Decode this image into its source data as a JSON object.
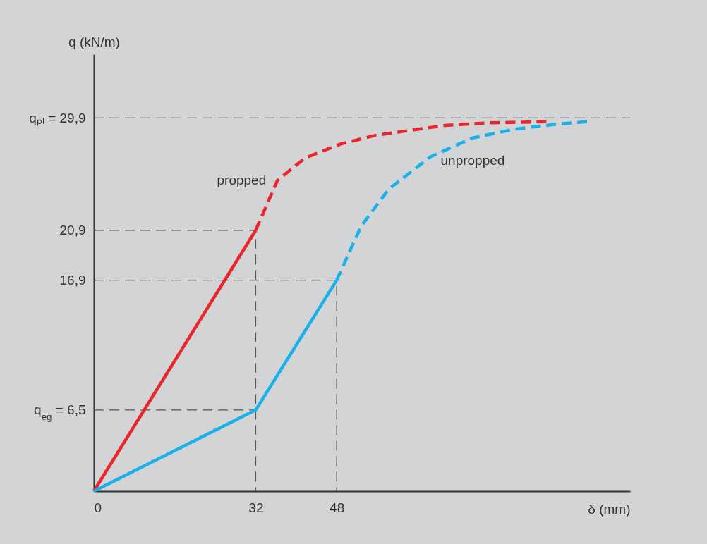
{
  "chart_data": {
    "type": "line",
    "xlabel": "δ (mm)",
    "ylabel": "q (kN/m)",
    "xlim": [
      0,
      106
    ],
    "ylim": [
      0,
      35
    ],
    "xticks": [
      0,
      32,
      48
    ],
    "yticks": [
      {
        "value": 6.5,
        "label": "q$_{eg}$ = 6,5"
      },
      {
        "value": 16.9,
        "label": "16,9"
      },
      {
        "value": 20.9,
        "label": "20,9"
      },
      {
        "value": 29.9,
        "label": "qₚₗ = 29,9"
      }
    ],
    "grid": false,
    "marker": "none",
    "ref_lines": [
      {
        "axis": "y",
        "value": 29.9,
        "color": "#555555",
        "line_style": "dashed"
      }
    ],
    "series": [
      {
        "color": "#e8262b",
        "line_style": "solid",
        "x": [
          0,
          32
        ],
        "values": [
          0,
          20.9
        ]
      },
      {
        "name": "propped",
        "color": "#e8262b",
        "line_style": "dashed",
        "x": [
          32,
          36.3,
          41.8,
          48.7,
          55.6,
          62.5,
          69.4,
          77.7,
          90
        ],
        "values": [
          20.9,
          24.9,
          26.7,
          27.8,
          28.5,
          28.9,
          29.3,
          29.5,
          29.6
        ]
      },
      {
        "color": "#1ab0e8",
        "line_style": "solid",
        "x": [
          0,
          32,
          48
        ],
        "values": [
          0,
          6.5,
          16.9
        ]
      },
      {
        "name": "unpropped",
        "color": "#1ab0e8",
        "line_style": "dashed",
        "x": [
          48,
          52.8,
          58.3,
          66.6,
          74.9,
          83.2,
          91.4,
          97.7
        ],
        "values": [
          16.9,
          21.2,
          24.2,
          26.8,
          28.3,
          29.0,
          29.4,
          29.6
        ]
      },
      {
        "color": "#555555",
        "line_style": "dashed",
        "x": [
          0,
          32,
          32
        ],
        "values": [
          20.9,
          20.9,
          0
        ]
      },
      {
        "color": "#555555",
        "line_style": "dashed",
        "x": [
          0,
          48,
          48
        ],
        "values": [
          16.9,
          16.9,
          0
        ]
      },
      {
        "color": "#555555",
        "line_style": "dashed",
        "x": [
          0,
          32
        ],
        "values": [
          6.5,
          6.5
        ]
      }
    ]
  }
}
